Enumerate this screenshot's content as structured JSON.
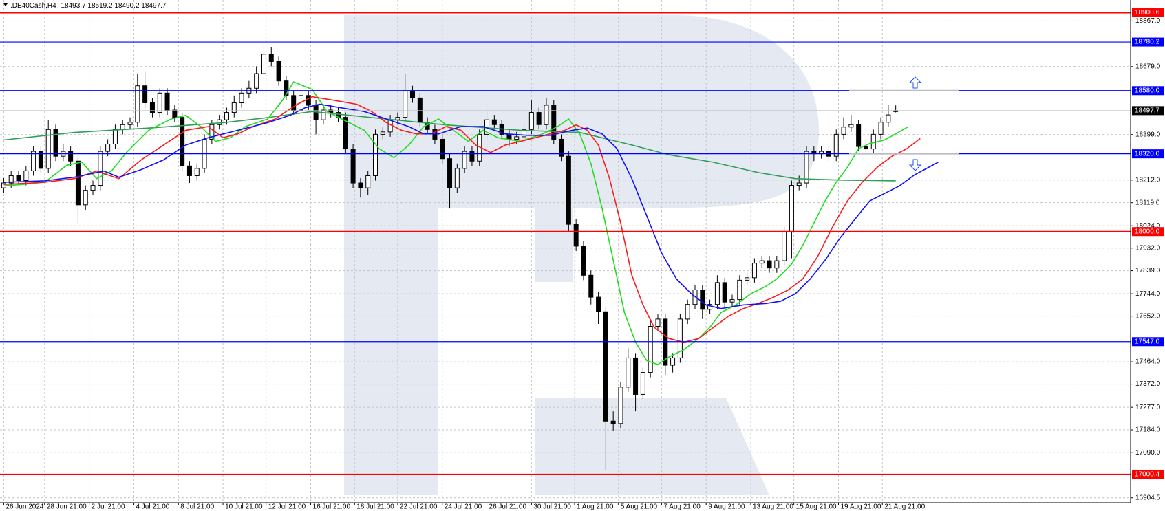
{
  "chart_data": {
    "type": "candlestick",
    "title": ".DE40Cash,H4",
    "open": [
      18180,
      18200,
      18230,
      18210,
      18250,
      18330,
      18260,
      18420,
      18310,
      18330,
      18290,
      18110,
      18170,
      18190,
      18330,
      18360,
      18420,
      18440,
      18450,
      18600,
      18530,
      18490,
      18570,
      18500,
      18470,
      18270,
      18230,
      18260,
      18380,
      18440,
      18460,
      18490,
      18530,
      18570,
      18590,
      18650,
      18730,
      18700,
      18620,
      18560,
      18500,
      18560,
      18520,
      18460,
      18500,
      18490,
      18470,
      18340,
      18200,
      18180,
      18230,
      18400,
      18410,
      18460,
      18470,
      18580,
      18550,
      18450,
      18420,
      18380,
      18300,
      18180,
      18260,
      18330,
      18290,
      18400,
      18460,
      18440,
      18400,
      18380,
      18390,
      18420,
      18490,
      18440,
      18520,
      18380,
      18310,
      18030,
      17940,
      17820,
      17730,
      17670,
      17220,
      17210,
      17360,
      17480,
      17330,
      17420,
      17610,
      17640,
      17450,
      17480,
      17640,
      17700,
      17760,
      17680,
      17700,
      17790,
      17710,
      17720,
      17800,
      17810,
      17870,
      17880,
      17850,
      17880,
      18000,
      18190,
      18200,
      18330,
      18320,
      18330,
      18310,
      18400,
      18430,
      18440,
      18350,
      18340,
      18400,
      18450,
      18493.7,
      null,
      null,
      null,
      null,
      null,
      null
    ],
    "high": [
      18220,
      18250,
      18250,
      18270,
      18350,
      18350,
      18460,
      18440,
      18360,
      18350,
      18310,
      18190,
      18210,
      18350,
      18380,
      18440,
      18460,
      18470,
      18650,
      18660,
      18550,
      18590,
      18590,
      18520,
      18490,
      18290,
      18280,
      18400,
      18460,
      18480,
      18510,
      18560,
      18590,
      18620,
      18680,
      18768,
      18760,
      18720,
      18640,
      18580,
      18580,
      18580,
      18540,
      18520,
      18520,
      18510,
      18490,
      18360,
      18220,
      18250,
      18420,
      18430,
      18480,
      18490,
      18650,
      18600,
      18570,
      18470,
      18440,
      18400,
      18320,
      18280,
      18350,
      18350,
      18420,
      18500,
      18480,
      18460,
      18420,
      18410,
      18440,
      18540,
      18510,
      18550,
      18540,
      18400,
      18330,
      18050,
      17960,
      17840,
      17750,
      17690,
      17260,
      17380,
      17520,
      17500,
      17440,
      17640,
      17660,
      17660,
      17500,
      17660,
      17720,
      17780,
      17780,
      17720,
      17820,
      17810,
      17740,
      17820,
      17830,
      17890,
      17900,
      17900,
      17900,
      18020,
      18210,
      18230,
      18350,
      18350,
      18350,
      18350,
      18420,
      18470,
      18480,
      18460,
      18370,
      18420,
      18470,
      18520,
      18519.2,
      null,
      null,
      null,
      null,
      null,
      null
    ],
    "low": [
      18160,
      18180,
      18190,
      18190,
      18230,
      18240,
      18240,
      18290,
      18290,
      18270,
      18035,
      18090,
      18150,
      18170,
      18310,
      18340,
      18400,
      18420,
      18430,
      18510,
      18470,
      18470,
      18480,
      18450,
      18250,
      18200,
      18210,
      18240,
      18360,
      18420,
      18440,
      18470,
      18510,
      18550,
      18570,
      18630,
      18680,
      18600,
      18540,
      18480,
      18480,
      18500,
      18400,
      18440,
      18470,
      18450,
      18320,
      18180,
      18140,
      18150,
      18210,
      18380,
      18390,
      18440,
      18450,
      18530,
      18430,
      18400,
      18360,
      18280,
      18095,
      18160,
      18240,
      18270,
      18270,
      18380,
      18420,
      18380,
      18350,
      18360,
      18370,
      18400,
      18420,
      18420,
      18360,
      18290,
      18000,
      17920,
      17800,
      17700,
      17620,
      17018,
      17180,
      17190,
      17340,
      17260,
      17310,
      17400,
      17590,
      17410,
      17420,
      17460,
      17620,
      17680,
      17640,
      17660,
      17680,
      17690,
      17690,
      17700,
      17780,
      17790,
      17850,
      17830,
      17830,
      17860,
      17890,
      18170,
      18180,
      18290,
      18300,
      18290,
      18290,
      18380,
      18410,
      18330,
      18320,
      18320,
      18380,
      18430,
      18490.2,
      null,
      null,
      null,
      null,
      null,
      null
    ],
    "close": [
      18200,
      18230,
      18210,
      18250,
      18330,
      18260,
      18420,
      18310,
      18330,
      18290,
      18110,
      18170,
      18190,
      18330,
      18360,
      18420,
      18440,
      18450,
      18600,
      18530,
      18490,
      18570,
      18500,
      18470,
      18270,
      18230,
      18260,
      18380,
      18440,
      18460,
      18490,
      18530,
      18570,
      18590,
      18650,
      18730,
      18700,
      18620,
      18560,
      18500,
      18560,
      18520,
      18460,
      18500,
      18490,
      18470,
      18340,
      18200,
      18180,
      18230,
      18400,
      18410,
      18460,
      18470,
      18580,
      18550,
      18450,
      18420,
      18380,
      18300,
      18180,
      18260,
      18330,
      18290,
      18400,
      18460,
      18440,
      18400,
      18380,
      18390,
      18420,
      18490,
      18440,
      18520,
      18380,
      18310,
      18030,
      17940,
      17820,
      17730,
      17670,
      17220,
      17210,
      17360,
      17480,
      17330,
      17420,
      17610,
      17640,
      17450,
      17480,
      17640,
      17700,
      17760,
      17680,
      17700,
      17790,
      17710,
      17720,
      17800,
      17810,
      17870,
      17880,
      17850,
      17880,
      18000,
      18190,
      18200,
      18330,
      18320,
      18330,
      18310,
      18400,
      18430,
      18440,
      18350,
      18340,
      18400,
      18450,
      18480,
      18497.7,
      null,
      null,
      null,
      null,
      null,
      null
    ],
    "up_color": "#ffffff",
    "down_color": "#000000",
    "candle_outline": "#000000",
    "lines": [
      {
        "color": "#2e9e57",
        "x": [
          0,
          9.5,
          19.5,
          29.5,
          35.5,
          41.5,
          49.5,
          59.5,
          69.5,
          77.5,
          84.5,
          89.5,
          95.5,
          101.5,
          106.5,
          112.5,
          120
        ],
        "values": [
          18377,
          18408,
          18426,
          18448,
          18469,
          18494,
          18469,
          18439,
          18417,
          18408,
          18356,
          18316,
          18285,
          18243,
          18218,
          18212,
          18209
        ]
      },
      {
        "color": "#1fdc1f",
        "x": [
          0,
          2.5,
          5.5,
          8.5,
          10.5,
          12.5,
          14.5,
          16.5,
          19.5,
          22.5,
          24.5,
          26.5,
          28.5,
          30.5,
          32.5,
          35.5,
          37.5,
          39,
          41.5,
          43.5,
          45.5,
          48.5,
          50.5,
          52.5,
          54.5,
          56.5,
          58.5,
          60.5,
          62.5,
          64.5,
          66.5,
          69.5,
          72.5,
          74.5,
          76,
          77.5,
          79,
          80.5,
          82,
          83.5,
          85,
          86.5,
          88,
          89.5,
          91.5,
          93.5,
          95,
          96.5,
          98.5,
          100.5,
          102.5,
          104,
          106,
          107.5,
          109,
          110.5,
          112,
          113.5,
          115,
          116.5,
          118.5,
          120,
          121.7
        ],
        "values": [
          18188,
          18194,
          18203,
          18273,
          18286,
          18218,
          18249,
          18325,
          18417,
          18463,
          18478,
          18432,
          18371,
          18386,
          18432,
          18463,
          18540,
          18616,
          18585,
          18494,
          18463,
          18417,
          18341,
          18304,
          18356,
          18432,
          18463,
          18417,
          18371,
          18417,
          18386,
          18371,
          18402,
          18432,
          18463,
          18402,
          18279,
          18096,
          17882,
          17667,
          17545,
          17469,
          17453,
          17484,
          17514,
          17560,
          17606,
          17667,
          17698,
          17744,
          17774,
          17805,
          17866,
          17943,
          18035,
          18126,
          18203,
          18264,
          18341,
          18362,
          18377,
          18402,
          18432
        ]
      },
      {
        "color": "#ff1a1a",
        "x": [
          0,
          5.5,
          9.5,
          12.5,
          15.5,
          18.5,
          21.5,
          24.5,
          27.5,
          29.5,
          31.5,
          33.5,
          36.5,
          39.5,
          41.5,
          44.5,
          47.5,
          49.5,
          51.5,
          53.5,
          55.5,
          57.5,
          59.5,
          61.5,
          63.5,
          65.5,
          67.5,
          69.5,
          71.5,
          73.5,
          75.5,
          77,
          78.5,
          80,
          81.5,
          83,
          84.5,
          86,
          87.5,
          89.5,
          91.5,
          93.5,
          95.5,
          97.5,
          99.5,
          101.5,
          103.5,
          105.5,
          107.5,
          109.5,
          111.5,
          113.5,
          115.5,
          117.5,
          119.5,
          121.5,
          123.3
        ],
        "values": [
          18194,
          18203,
          18218,
          18249,
          18218,
          18295,
          18356,
          18417,
          18432,
          18386,
          18402,
          18432,
          18463,
          18524,
          18555,
          18540,
          18524,
          18494,
          18448,
          18417,
          18402,
          18402,
          18432,
          18417,
          18356,
          18325,
          18356,
          18371,
          18386,
          18402,
          18417,
          18439,
          18417,
          18356,
          18218,
          18035,
          17820,
          17698,
          17606,
          17560,
          17545,
          17560,
          17606,
          17652,
          17683,
          17704,
          17729,
          17759,
          17805,
          17897,
          18019,
          18126,
          18203,
          18264,
          18310,
          18341,
          18383
        ]
      },
      {
        "color": "#1010ff",
        "x": [
          0,
          5.5,
          9.5,
          13.5,
          15.5,
          18.5,
          21.5,
          24.5,
          27.5,
          31.5,
          35.5,
          38.5,
          40.5,
          42.5,
          45.5,
          48.5,
          51.5,
          54.5,
          56.5,
          58.5,
          61.5,
          64.5,
          67.5,
          70.5,
          73.5,
          76.5,
          78.5,
          80.5,
          82.5,
          84.5,
          86.5,
          88.5,
          90.5,
          92.5,
          94.5,
          96.5,
          99.5,
          102.5,
          104.5,
          106.5,
          108.5,
          110.5,
          112.5,
          114.5,
          116.5,
          118.5,
          120.5,
          122.5,
          125.7
        ],
        "values": [
          18203,
          18209,
          18224,
          18249,
          18224,
          18255,
          18295,
          18356,
          18386,
          18417,
          18448,
          18478,
          18509,
          18524,
          18509,
          18494,
          18463,
          18432,
          18402,
          18402,
          18432,
          18432,
          18402,
          18396,
          18396,
          18417,
          18426,
          18402,
          18341,
          18218,
          18065,
          17912,
          17805,
          17744,
          17698,
          17683,
          17698,
          17704,
          17713,
          17744,
          17805,
          17882,
          17973,
          18050,
          18126,
          18157,
          18188,
          18233,
          18285
        ]
      }
    ],
    "levels": [
      {
        "value": 18900.6,
        "color": "#ff0000"
      },
      {
        "value": 18780.2,
        "color": "#0000ff"
      },
      {
        "value": 18580,
        "label": "18580.0",
        "color": "#0000ff"
      },
      {
        "value": 18320,
        "label": "18320.0",
        "color": "#0000ff"
      },
      {
        "value": 18000,
        "label": "18000.0",
        "color": "#ff0000"
      },
      {
        "value": 17547,
        "label": "17547.0",
        "color": "#0000ff"
      },
      {
        "value": 17000.4,
        "color": "#ff0000"
      }
    ],
    "last_price_color": "#000000",
    "ylim": [
      16884,
      18953
    ],
    "yticks": [
      {
        "value": 18867,
        "label": "18867.0"
      },
      {
        "value": 18679,
        "label": "18679.0"
      },
      {
        "value": 18399,
        "label": "18399.0"
      },
      {
        "value": 18212,
        "label": "18212.0"
      },
      {
        "value": 18119,
        "label": "18119.0"
      },
      {
        "value": 18024,
        "label": "18024.0"
      },
      {
        "value": 17932,
        "label": "17932.0"
      },
      {
        "value": 17839,
        "label": "17839.0"
      },
      {
        "value": 17744,
        "label": "17744.0"
      },
      {
        "value": 17652,
        "label": "17652.0"
      },
      {
        "value": 17464,
        "label": "17464.0"
      },
      {
        "value": 17372,
        "label": "17372.0"
      },
      {
        "value": 17277,
        "label": "17277.0"
      },
      {
        "value": 17184,
        "label": "17184.0"
      },
      {
        "value": 17090,
        "label": "17090.0"
      },
      16904.5
    ],
    "xlim": [
      -0.5,
      151.6
    ],
    "xticks": [
      {
        "value": 0,
        "label": "26 Jun 2024"
      },
      {
        "value": 5.5,
        "label": "28 Jun 21:00"
      },
      {
        "value": 11.5,
        "label": "2 Jul 21:00"
      },
      {
        "value": 17.5,
        "label": "4 Jul 21:00"
      },
      {
        "value": 23.5,
        "label": "8 Jul 21:00"
      },
      {
        "value": 29.5,
        "label": "10 Jul 21:00"
      },
      {
        "value": 35.3,
        "label": "12 Jul 21:00"
      },
      {
        "value": 41.3,
        "label": "16 Jul 21:00"
      },
      {
        "value": 47.2,
        "label": "18 Jul 21:00"
      },
      {
        "value": 53,
        "label": "22 Jul 21:00"
      },
      {
        "value": 59,
        "label": "24 Jul 21:00"
      },
      {
        "value": 65,
        "label": "26 Jul 21:00"
      },
      {
        "value": 71,
        "label": "30 Jul 21:00"
      },
      {
        "value": 76.8,
        "label": "1 Aug 21:00"
      },
      {
        "value": 82.7,
        "label": "5 Aug 21:00"
      },
      {
        "value": 88.5,
        "label": "7 Aug 21:00"
      },
      {
        "value": 94.5,
        "label": "9 Aug 21:00"
      },
      {
        "value": 100.5,
        "label": "13 Aug 21:00"
      },
      {
        "value": 106.3,
        "label": "15 Aug 21:00"
      },
      {
        "value": 112.3,
        "label": "19 Aug 21:00"
      },
      {
        "value": 118.2,
        "label": "21 Aug 21:00"
      }
    ],
    "grid": true
  }
}
